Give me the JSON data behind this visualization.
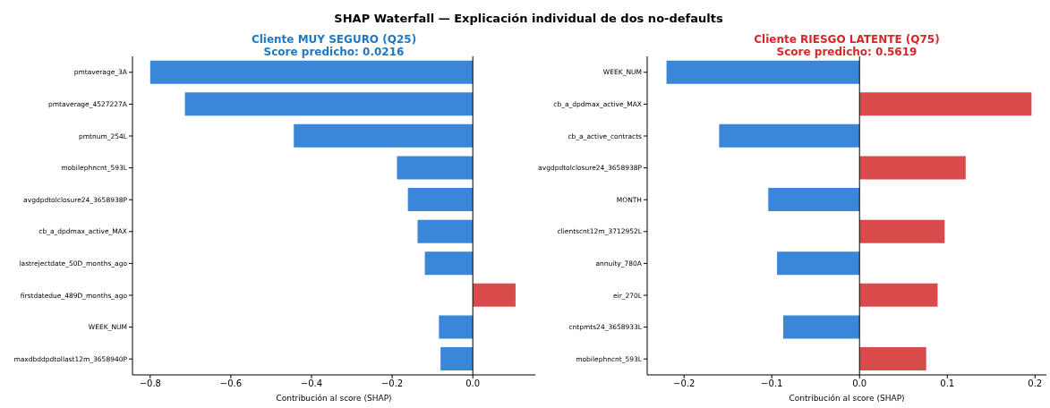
{
  "chart_data": [
    {
      "type": "bar",
      "orientation": "horizontal",
      "title": "SHAP Waterfall — Explicación individual de dos no-defaults",
      "subtitle": "Cliente MUY SEGURO (Q25)\nScore predicho: 0.0216",
      "xlabel": "Contribución al score (SHAP)",
      "categories": [
        "pmtaverage_3A",
        "pmtaverage_4527227A",
        "pmtnum_254L",
        "mobilephncnt_593L",
        "avgdpdtolclosure24_3658938P",
        "cb_a_dpdmax_active_MAX",
        "lastrejectdate_50D_months_ago",
        "firstdatedue_489D_months_ago",
        "WEEK_NUM",
        "maxdbddpdtollast12m_3658940P"
      ],
      "values": [
        -0.8,
        -0.714,
        -0.444,
        -0.188,
        -0.161,
        -0.137,
        -0.119,
        0.106,
        -0.084,
        -0.08
      ],
      "colors": [
        "#3a87d9",
        "#3a87d9",
        "#3a87d9",
        "#3a87d9",
        "#3a87d9",
        "#3a87d9",
        "#3a87d9",
        "#d94b4b",
        "#3a87d9",
        "#3a87d9"
      ],
      "xlim": [
        -0.844,
        0.155
      ],
      "xticks": [
        {
          "value": -0.8,
          "label": "−0.8"
        },
        {
          "value": -0.6,
          "label": "−0.6"
        },
        {
          "value": -0.4,
          "label": "−0.4"
        },
        {
          "value": -0.2,
          "label": "−0.2"
        },
        {
          "value": 0,
          "label": "0.0"
        }
      ],
      "ref_lines": [
        {
          "axis": "x",
          "value": 0,
          "label": null,
          "color": "#000000"
        }
      ],
      "grid": false,
      "legend": false
    },
    {
      "type": "bar",
      "orientation": "horizontal",
      "subtitle": "Cliente RIESGO LATENTE (Q75)\nScore predicho: 0.5619",
      "xlabel": "Contribución al score (SHAP)",
      "categories": [
        "WEEK_NUM",
        "cb_a_dpdmax_active_MAX",
        "cb_a_active_contracts",
        "avgdpdtolclosure24_3658938P",
        "MONTH",
        "clientscnt12m_3712952L",
        "annuity_780A",
        "eir_270L",
        "cntpmts24_3658933L",
        "mobilephncnt_593L"
      ],
      "values": [
        -0.22,
        0.196,
        -0.16,
        0.121,
        -0.104,
        0.097,
        -0.094,
        0.089,
        -0.087,
        0.076
      ],
      "colors": [
        "#3a87d9",
        "#d94b4b",
        "#3a87d9",
        "#d94b4b",
        "#3a87d9",
        "#d94b4b",
        "#3a87d9",
        "#d94b4b",
        "#3a87d9",
        "#d94b4b"
      ],
      "xlim": [
        -0.242,
        0.213
      ],
      "xticks": [
        {
          "value": -0.2,
          "label": "−0.2"
        },
        {
          "value": -0.1,
          "label": "−0.1"
        },
        {
          "value": 0,
          "label": "0.0"
        },
        {
          "value": 0.1,
          "label": "0.1"
        },
        {
          "value": 0.2,
          "label": "0.2"
        }
      ],
      "ref_lines": [
        {
          "axis": "x",
          "value": 0,
          "label": null,
          "color": "#000000"
        }
      ],
      "grid": false,
      "legend": false
    }
  ]
}
